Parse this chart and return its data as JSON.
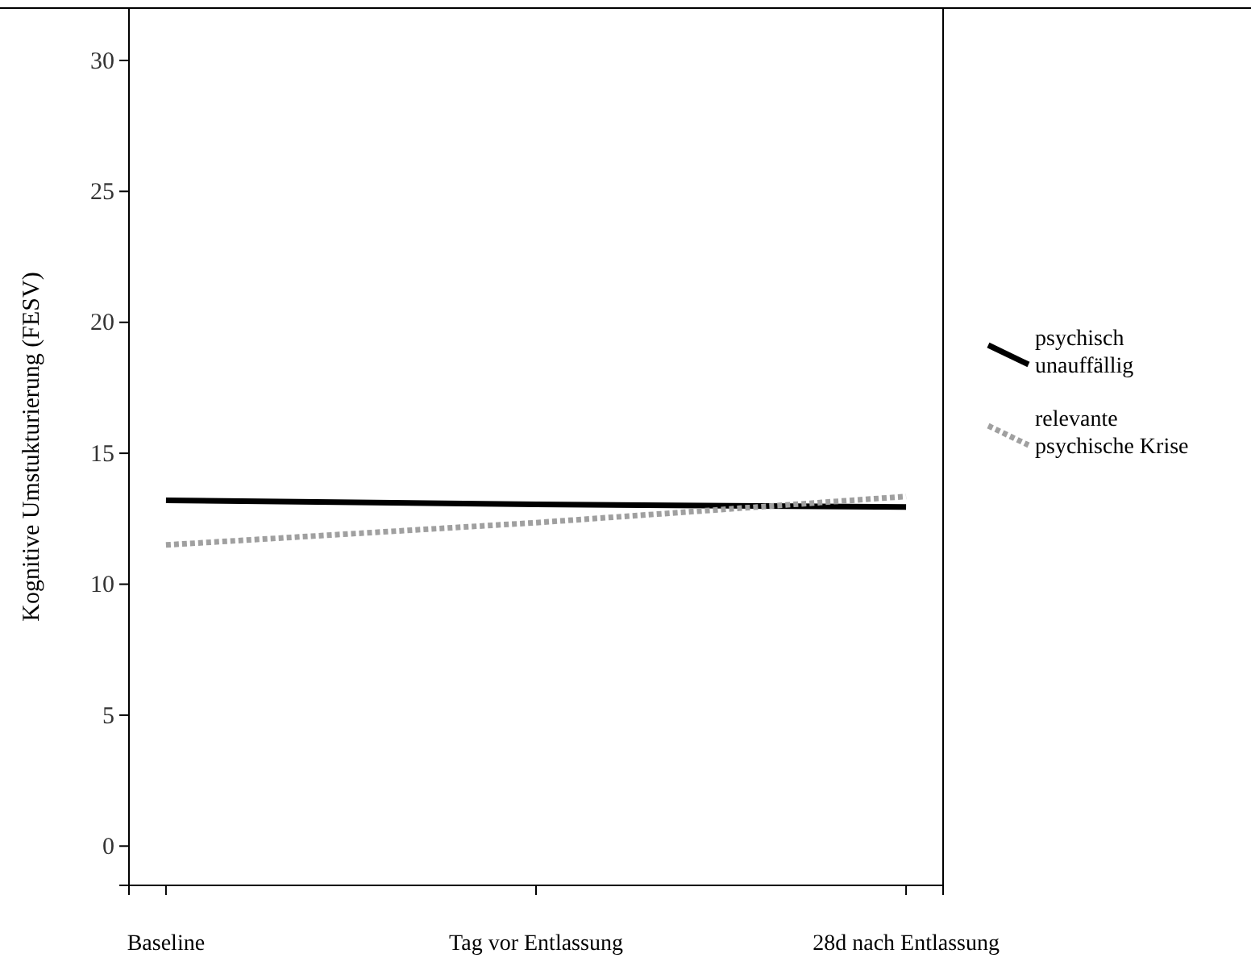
{
  "chart_data": {
    "type": "line",
    "ylabel": "Kognitive Umstukturierung (FESV)",
    "categories": [
      "Baseline",
      "Tag vor Entlassung",
      "28d nach Entlassung"
    ],
    "series": [
      {
        "name": "psychisch unauffällig",
        "color": "#000000",
        "line_style": "solid",
        "values": [
          13.2,
          13.05,
          12.95
        ]
      },
      {
        "name": "relevante psychische Krise",
        "color": "#a0a0a0",
        "line_style": "dotted",
        "values": [
          11.5,
          12.35,
          13.35
        ]
      }
    ],
    "ylim": [
      -1.5,
      32
    ],
    "yticks": [
      0,
      5,
      10,
      15,
      20,
      25,
      30
    ],
    "legend": "right"
  }
}
